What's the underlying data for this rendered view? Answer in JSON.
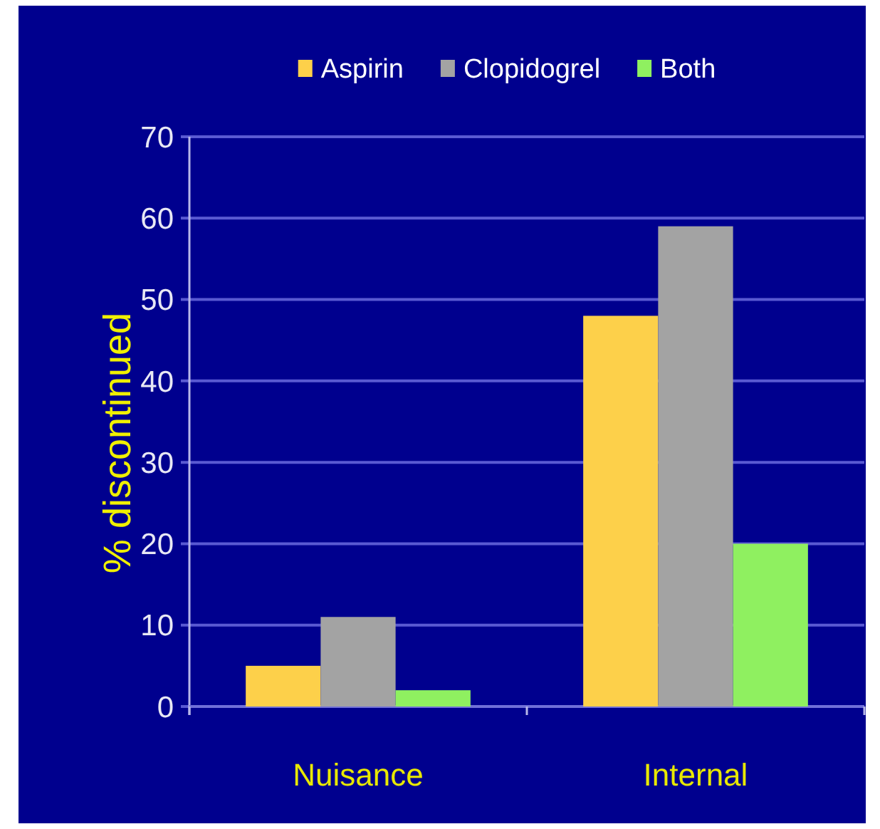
{
  "chart_data": {
    "type": "bar",
    "categories": [
      "Nuisance",
      "Internal"
    ],
    "series": [
      {
        "name": "Aspirin",
        "color": "#fdd04a",
        "values": [
          5,
          48
        ]
      },
      {
        "name": "Clopidogrel",
        "color": "#a3a3a3",
        "values": [
          11,
          59
        ]
      },
      {
        "name": "Both",
        "color": "#8ff060",
        "values": [
          2,
          20
        ]
      }
    ],
    "ylabel": "% discontinued",
    "ylim": [
      0,
      70
    ],
    "yticks": [
      0,
      10,
      20,
      30,
      40,
      50,
      60,
      70
    ],
    "grid": "y",
    "legend": "top"
  }
}
